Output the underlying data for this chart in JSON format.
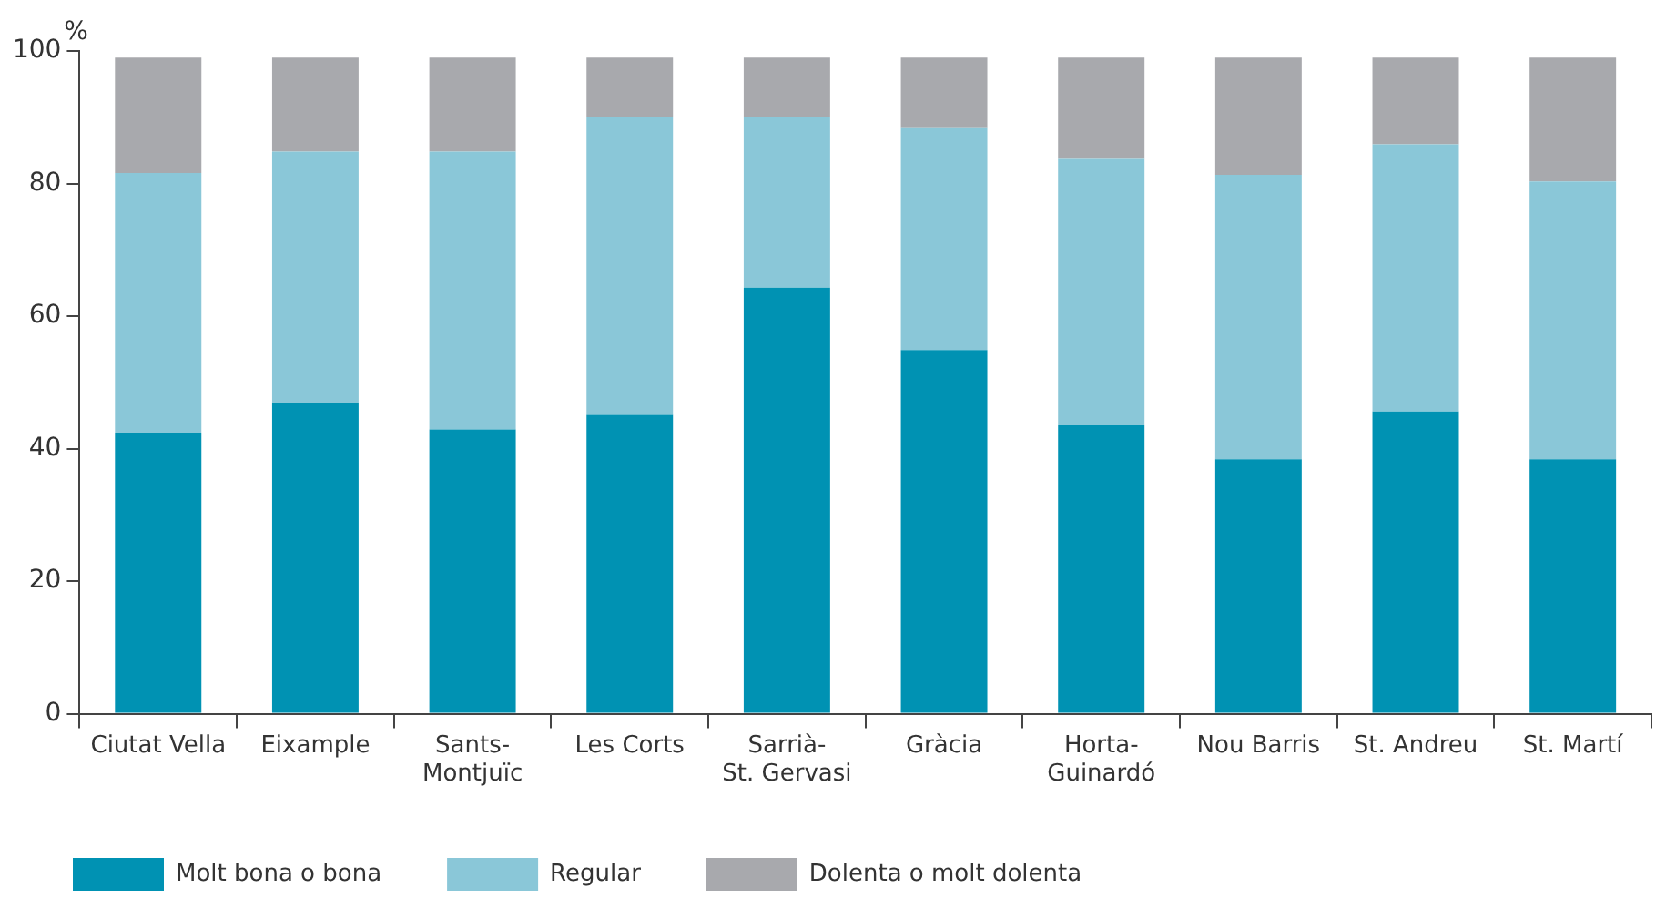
{
  "chart_data": {
    "type": "bar",
    "stacked": true,
    "ylabel": "%",
    "categories": [
      "Ciutat Vella",
      "Eixample",
      "Sants-Montjuïc",
      "Les Corts",
      "Sarrià-St. Gervasi",
      "Gràcia",
      "Horta-Guinardó",
      "Nou Barris",
      "St. Andreu",
      "St. Martí"
    ],
    "series": [
      {
        "name": "Molt bona o bona",
        "color": "#0092b3",
        "values": [
          42.4,
          46.9,
          42.9,
          45.1,
          64.3,
          54.9,
          43.5,
          38.4,
          45.6,
          38.4
        ]
      },
      {
        "name": "Regular",
        "color": "#8ac7d8",
        "values": [
          39.2,
          37.9,
          41.9,
          45.0,
          25.8,
          33.6,
          40.2,
          42.9,
          40.3,
          41.9
        ]
      },
      {
        "name": "Dolenta o molt dolenta",
        "color": "#a8a9ad",
        "values": [
          17.4,
          14.2,
          14.2,
          8.9,
          8.9,
          10.5,
          15.3,
          17.7,
          13.1,
          18.7
        ]
      }
    ],
    "ylim": [
      0,
      100
    ],
    "yticks": [
      0,
      20,
      40,
      60,
      80,
      100
    ],
    "grid": false,
    "legend": "bottom"
  }
}
